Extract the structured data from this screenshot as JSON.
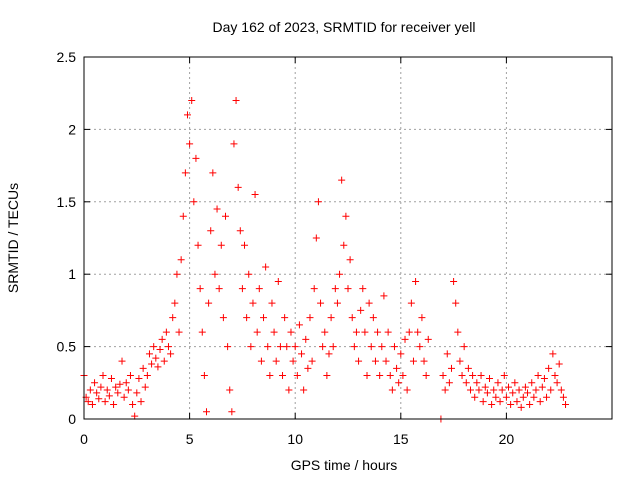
{
  "chart_data": {
    "type": "scatter",
    "title": "Day 162 of 2023, SRMTID for receiver yell",
    "xlabel": "GPS time / hours",
    "ylabel": "SRMTID / TECUs",
    "xlim": [
      0,
      25
    ],
    "ylim": [
      0,
      2.5
    ],
    "xticks": [
      0,
      5,
      10,
      15,
      20
    ],
    "xtick_labels": [
      "0",
      "5",
      "10",
      "15",
      "20"
    ],
    "yticks": [
      0,
      0.5,
      1,
      1.5,
      2,
      2.5
    ],
    "ytick_labels": [
      "0",
      "0.5",
      "1",
      "1.5",
      "2",
      "2.5"
    ],
    "grid": true,
    "marker": "plus",
    "color": "#ff0000",
    "series": [
      {
        "name": "SRMTID",
        "points": [
          [
            0.0,
            0.3
          ],
          [
            0.1,
            0.15
          ],
          [
            0.2,
            0.12
          ],
          [
            0.3,
            0.2
          ],
          [
            0.4,
            0.1
          ],
          [
            0.5,
            0.25
          ],
          [
            0.6,
            0.18
          ],
          [
            0.7,
            0.14
          ],
          [
            0.8,
            0.22
          ],
          [
            0.9,
            0.3
          ],
          [
            1.0,
            0.12
          ],
          [
            1.1,
            0.2
          ],
          [
            1.2,
            0.16
          ],
          [
            1.3,
            0.28
          ],
          [
            1.4,
            0.1
          ],
          [
            1.5,
            0.22
          ],
          [
            1.6,
            0.18
          ],
          [
            1.7,
            0.24
          ],
          [
            1.8,
            0.4
          ],
          [
            1.9,
            0.15
          ],
          [
            2.0,
            0.25
          ],
          [
            2.1,
            0.2
          ],
          [
            2.2,
            0.3
          ],
          [
            2.3,
            0.1
          ],
          [
            2.4,
            0.02
          ],
          [
            2.5,
            0.18
          ],
          [
            2.6,
            0.28
          ],
          [
            2.7,
            0.12
          ],
          [
            2.8,
            0.35
          ],
          [
            2.9,
            0.22
          ],
          [
            3.0,
            0.3
          ],
          [
            3.1,
            0.45
          ],
          [
            3.2,
            0.38
          ],
          [
            3.3,
            0.5
          ],
          [
            3.4,
            0.42
          ],
          [
            3.5,
            0.36
          ],
          [
            3.6,
            0.48
          ],
          [
            3.7,
            0.55
          ],
          [
            3.8,
            0.4
          ],
          [
            3.9,
            0.6
          ],
          [
            4.0,
            0.5
          ],
          [
            4.1,
            0.45
          ],
          [
            4.2,
            0.7
          ],
          [
            4.3,
            0.8
          ],
          [
            4.4,
            1.0
          ],
          [
            4.5,
            0.6
          ],
          [
            4.6,
            1.1
          ],
          [
            4.7,
            1.4
          ],
          [
            4.8,
            1.7
          ],
          [
            4.9,
            2.1
          ],
          [
            5.0,
            1.9
          ],
          [
            5.1,
            2.2
          ],
          [
            5.2,
            1.5
          ],
          [
            5.3,
            1.8
          ],
          [
            5.4,
            1.2
          ],
          [
            5.5,
            0.9
          ],
          [
            5.6,
            0.6
          ],
          [
            5.7,
            0.3
          ],
          [
            5.8,
            0.05
          ],
          [
            5.9,
            0.8
          ],
          [
            6.0,
            1.3
          ],
          [
            6.1,
            1.7
          ],
          [
            6.2,
            1.0
          ],
          [
            6.3,
            1.45
          ],
          [
            6.4,
            0.9
          ],
          [
            6.5,
            1.2
          ],
          [
            6.6,
            0.7
          ],
          [
            6.7,
            1.4
          ],
          [
            6.8,
            0.5
          ],
          [
            6.9,
            0.2
          ],
          [
            7.0,
            0.05
          ],
          [
            7.1,
            1.9
          ],
          [
            7.2,
            2.2
          ],
          [
            7.3,
            1.6
          ],
          [
            7.4,
            1.3
          ],
          [
            7.5,
            0.9
          ],
          [
            7.6,
            1.2
          ],
          [
            7.7,
            0.7
          ],
          [
            7.8,
            1.0
          ],
          [
            7.9,
            0.5
          ],
          [
            8.0,
            0.8
          ],
          [
            8.1,
            1.55
          ],
          [
            8.2,
            0.6
          ],
          [
            8.3,
            0.9
          ],
          [
            8.4,
            0.4
          ],
          [
            8.5,
            0.7
          ],
          [
            8.6,
            1.05
          ],
          [
            8.7,
            0.5
          ],
          [
            8.8,
            0.3
          ],
          [
            8.9,
            0.8
          ],
          [
            9.0,
            0.6
          ],
          [
            9.1,
            0.4
          ],
          [
            9.2,
            0.95
          ],
          [
            9.3,
            0.5
          ],
          [
            9.4,
            0.3
          ],
          [
            9.5,
            0.7
          ],
          [
            9.6,
            0.5
          ],
          [
            9.7,
            0.2
          ],
          [
            9.8,
            0.6
          ],
          [
            9.9,
            0.4
          ],
          [
            10.0,
            0.5
          ],
          [
            10.1,
            0.3
          ],
          [
            10.2,
            0.65
          ],
          [
            10.3,
            0.45
          ],
          [
            10.4,
            0.2
          ],
          [
            10.5,
            0.55
          ],
          [
            10.6,
            0.35
          ],
          [
            10.7,
            0.7
          ],
          [
            10.8,
            0.4
          ],
          [
            10.9,
            0.9
          ],
          [
            11.0,
            1.25
          ],
          [
            11.1,
            1.5
          ],
          [
            11.2,
            0.8
          ],
          [
            11.3,
            0.5
          ],
          [
            11.4,
            0.6
          ],
          [
            11.5,
            0.3
          ],
          [
            11.6,
            0.45
          ],
          [
            11.7,
            0.7
          ],
          [
            11.8,
            0.5
          ],
          [
            11.9,
            0.9
          ],
          [
            12.0,
            0.8
          ],
          [
            12.1,
            1.0
          ],
          [
            12.2,
            1.65
          ],
          [
            12.3,
            1.2
          ],
          [
            12.4,
            1.4
          ],
          [
            12.5,
            0.9
          ],
          [
            12.6,
            1.1
          ],
          [
            12.7,
            0.7
          ],
          [
            12.8,
            0.5
          ],
          [
            12.9,
            0.6
          ],
          [
            13.0,
            0.4
          ],
          [
            13.1,
            0.75
          ],
          [
            13.2,
            0.9
          ],
          [
            13.3,
            0.6
          ],
          [
            13.4,
            0.3
          ],
          [
            13.5,
            0.8
          ],
          [
            13.6,
            0.5
          ],
          [
            13.7,
            0.7
          ],
          [
            13.8,
            0.4
          ],
          [
            13.9,
            0.6
          ],
          [
            14.0,
            0.3
          ],
          [
            14.1,
            0.5
          ],
          [
            14.2,
            0.85
          ],
          [
            14.3,
            0.4
          ],
          [
            14.4,
            0.6
          ],
          [
            14.5,
            0.3
          ],
          [
            14.6,
            0.2
          ],
          [
            14.7,
            0.5
          ],
          [
            14.8,
            0.35
          ],
          [
            14.9,
            0.25
          ],
          [
            15.0,
            0.45
          ],
          [
            15.1,
            0.3
          ],
          [
            15.2,
            0.55
          ],
          [
            15.3,
            0.2
          ],
          [
            15.4,
            0.6
          ],
          [
            15.5,
            0.8
          ],
          [
            15.6,
            0.4
          ],
          [
            15.7,
            0.95
          ],
          [
            15.8,
            0.6
          ],
          [
            15.9,
            0.5
          ],
          [
            16.0,
            0.7
          ],
          [
            16.1,
            0.4
          ],
          [
            16.2,
            0.3
          ],
          [
            16.3,
            0.55
          ],
          [
            16.9,
            0.0
          ],
          [
            17.0,
            0.3
          ],
          [
            17.1,
            0.2
          ],
          [
            17.2,
            0.45
          ],
          [
            17.3,
            0.25
          ],
          [
            17.4,
            0.35
          ],
          [
            17.5,
            0.95
          ],
          [
            17.6,
            0.8
          ],
          [
            17.7,
            0.6
          ],
          [
            17.8,
            0.4
          ],
          [
            17.9,
            0.3
          ],
          [
            18.0,
            0.5
          ],
          [
            18.1,
            0.25
          ],
          [
            18.2,
            0.35
          ],
          [
            18.3,
            0.2
          ],
          [
            18.4,
            0.3
          ],
          [
            18.5,
            0.15
          ],
          [
            18.6,
            0.25
          ],
          [
            18.7,
            0.2
          ],
          [
            18.8,
            0.3
          ],
          [
            18.9,
            0.12
          ],
          [
            19.0,
            0.22
          ],
          [
            19.1,
            0.18
          ],
          [
            19.2,
            0.28
          ],
          [
            19.3,
            0.1
          ],
          [
            19.4,
            0.2
          ],
          [
            19.5,
            0.15
          ],
          [
            19.6,
            0.25
          ],
          [
            19.7,
            0.12
          ],
          [
            19.8,
            0.2
          ],
          [
            19.9,
            0.3
          ],
          [
            20.0,
            0.15
          ],
          [
            20.1,
            0.22
          ],
          [
            20.2,
            0.1
          ],
          [
            20.3,
            0.18
          ],
          [
            20.4,
            0.25
          ],
          [
            20.5,
            0.12
          ],
          [
            20.6,
            0.2
          ],
          [
            20.7,
            0.08
          ],
          [
            20.8,
            0.15
          ],
          [
            20.9,
            0.22
          ],
          [
            21.0,
            0.18
          ],
          [
            21.1,
            0.1
          ],
          [
            21.2,
            0.25
          ],
          [
            21.3,
            0.15
          ],
          [
            21.4,
            0.2
          ],
          [
            21.5,
            0.3
          ],
          [
            21.6,
            0.12
          ],
          [
            21.7,
            0.22
          ],
          [
            21.8,
            0.28
          ],
          [
            21.9,
            0.15
          ],
          [
            22.0,
            0.35
          ],
          [
            22.1,
            0.2
          ],
          [
            22.2,
            0.45
          ],
          [
            22.3,
            0.3
          ],
          [
            22.4,
            0.25
          ],
          [
            22.5,
            0.38
          ],
          [
            22.6,
            0.2
          ],
          [
            22.7,
            0.15
          ],
          [
            22.8,
            0.1
          ]
        ]
      }
    ]
  }
}
